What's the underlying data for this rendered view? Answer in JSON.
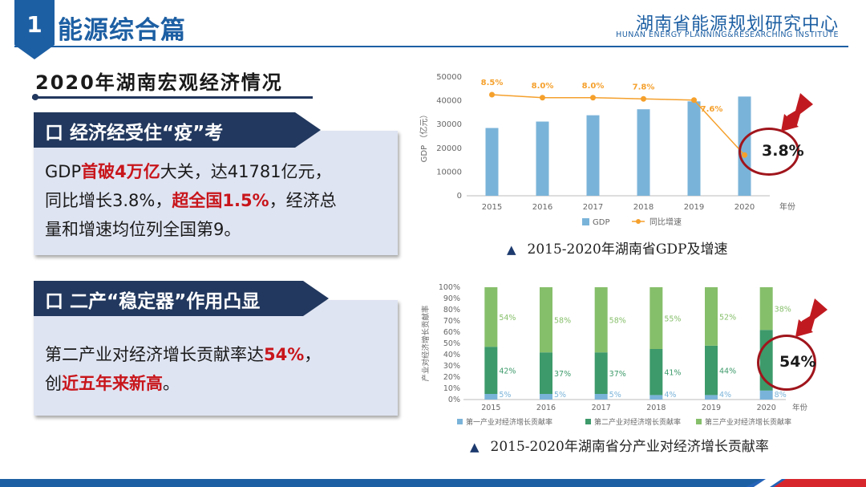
{
  "header": {
    "number": "1",
    "title": "能源综合篇",
    "org_cn": "湖南省能源规划研究中心",
    "org_en": "HUNAN ENERGY PLANNING&RESEARCHING INSTITUTE"
  },
  "section_title": "2020年湖南宏观经济情况",
  "card1": {
    "banner": "口 经济经受住“疫”考",
    "l1a": "GDP",
    "l1b": "首破4万亿",
    "l1c": "大关，达41781亿元，",
    "l2a": "同比增长3.8%，",
    "l2b": "超全国1.5%",
    "l2c": "，经济总",
    "l3": "量和增速均位列全国第9。"
  },
  "card2": {
    "banner": "口 二产“稳定器”作用凸显",
    "l1a": "第二产业对经济增长贡献率达",
    "l1b": "54%",
    "l1c": "，",
    "l2a": "创",
    "l2b": "近五年来新高",
    "l2c": "。"
  },
  "chart_data": [
    {
      "type": "bar",
      "title": "2015-2020年湖南省GDP及增速",
      "caption_marker": "▲",
      "categories": [
        "2015",
        "2016",
        "2017",
        "2018",
        "2019",
        "2020"
      ],
      "xlabel": "年份",
      "ylabel": "GDP （亿元）",
      "ylim": [
        0,
        50000
      ],
      "yticks": [
        "0",
        "10000",
        "20000",
        "30000",
        "40000",
        "50000"
      ],
      "series": [
        {
          "name": "GDP",
          "type": "bar",
          "color": "#7ab3d9",
          "values": [
            28538,
            31245,
            33903,
            36426,
            39752,
            41781
          ]
        },
        {
          "name": "同比增速",
          "type": "line",
          "color": "#f5a02c",
          "values": [
            8.5,
            8.0,
            8.0,
            7.8,
            7.6,
            3.8
          ],
          "labels": [
            "8.5%",
            "8.0%",
            "8.0%",
            "7.8%",
            "7.6%",
            "3.8%"
          ]
        }
      ],
      "callout": "3.8%"
    },
    {
      "type": "bar",
      "stacked": true,
      "title": "2015-2020年湖南省分产业对经济增长贡献率",
      "caption_marker": "▲",
      "categories": [
        "2015",
        "2016",
        "2017",
        "2018",
        "2019",
        "2020"
      ],
      "xlabel": "年份",
      "ylabel": "产业对经济增长贡献率",
      "ylim": [
        0,
        100
      ],
      "yticks": [
        "0%",
        "10%",
        "20%",
        "30%",
        "40%",
        "50%",
        "60%",
        "70%",
        "80%",
        "90%",
        "100%"
      ],
      "series": [
        {
          "name": "第一产业对经济增长贡献率",
          "color": "#7ab3d9",
          "values": [
            5,
            5,
            5,
            4,
            4,
            8
          ],
          "labels": [
            "5%",
            "5%",
            "5%",
            "4%",
            "4%",
            "8%"
          ]
        },
        {
          "name": "第二产业对经济增长贡献率",
          "color": "#3d9a6a",
          "values": [
            42,
            37,
            37,
            41,
            44,
            54
          ],
          "labels": [
            "42%",
            "37%",
            "37%",
            "41%",
            "44%",
            ""
          ]
        },
        {
          "name": "第三产业对经济增长贡献率",
          "color": "#86bf6a",
          "values": [
            54,
            58,
            58,
            55,
            52,
            38
          ],
          "labels": [
            "54%",
            "58%",
            "58%",
            "55%",
            "52%",
            "38%"
          ]
        }
      ],
      "callout": "54%"
    }
  ]
}
